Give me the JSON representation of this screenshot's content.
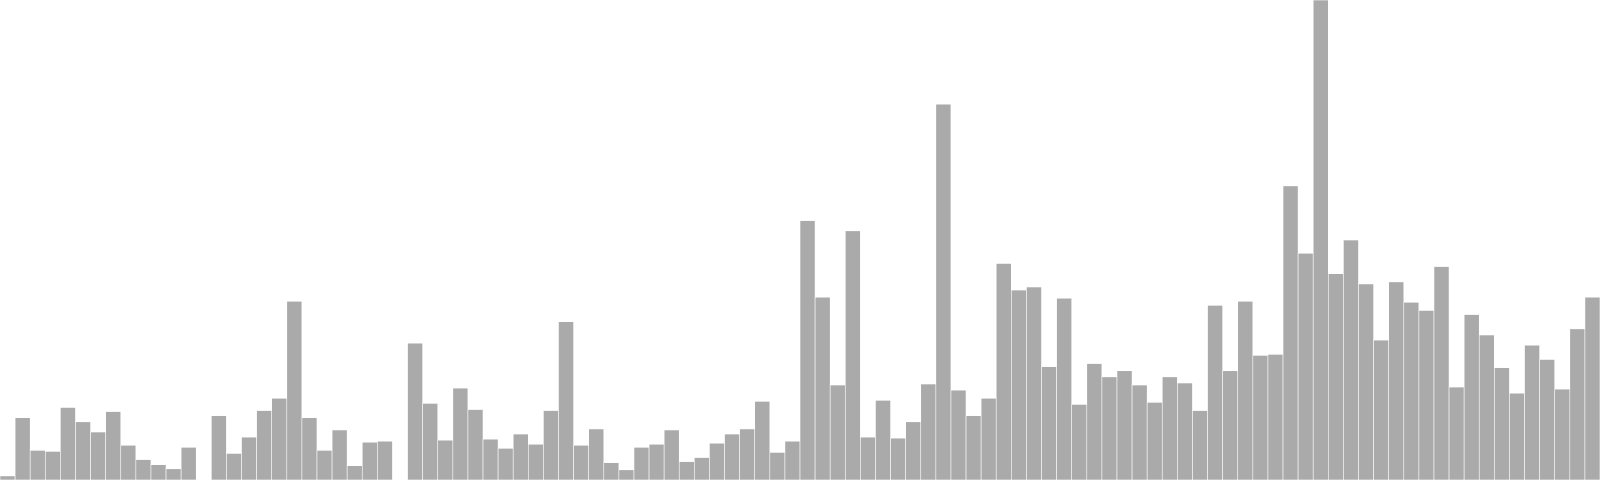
{
  "chart_data": {
    "type": "bar",
    "color": "#aaaaaa",
    "values": [
      4,
      61,
      29,
      28,
      71,
      57,
      47,
      67,
      34,
      20,
      15,
      11,
      32,
      0,
      63,
      26,
      42,
      68,
      80,
      175,
      61,
      29,
      49,
      14,
      37,
      38,
      0,
      134,
      75,
      39,
      90,
      69,
      40,
      31,
      45,
      35,
      68,
      155,
      34,
      50,
      17,
      10,
      32,
      35,
      49,
      18,
      22,
      36,
      45,
      50,
      77,
      27,
      38,
      254,
      179,
      93,
      244,
      42,
      78,
      41,
      57,
      94,
      368,
      88,
      63,
      80,
      212,
      186,
      189,
      111,
      178,
      74,
      114,
      101,
      107,
      93,
      76,
      101,
      95,
      68,
      171,
      107,
      175,
      122,
      123,
      288,
      222,
      470,
      202,
      235,
      192,
      137,
      194,
      174,
      166,
      209,
      91,
      162,
      142,
      110,
      85,
      132,
      118,
      89,
      148,
      179
    ],
    "ylim": [
      0,
      470
    ]
  }
}
